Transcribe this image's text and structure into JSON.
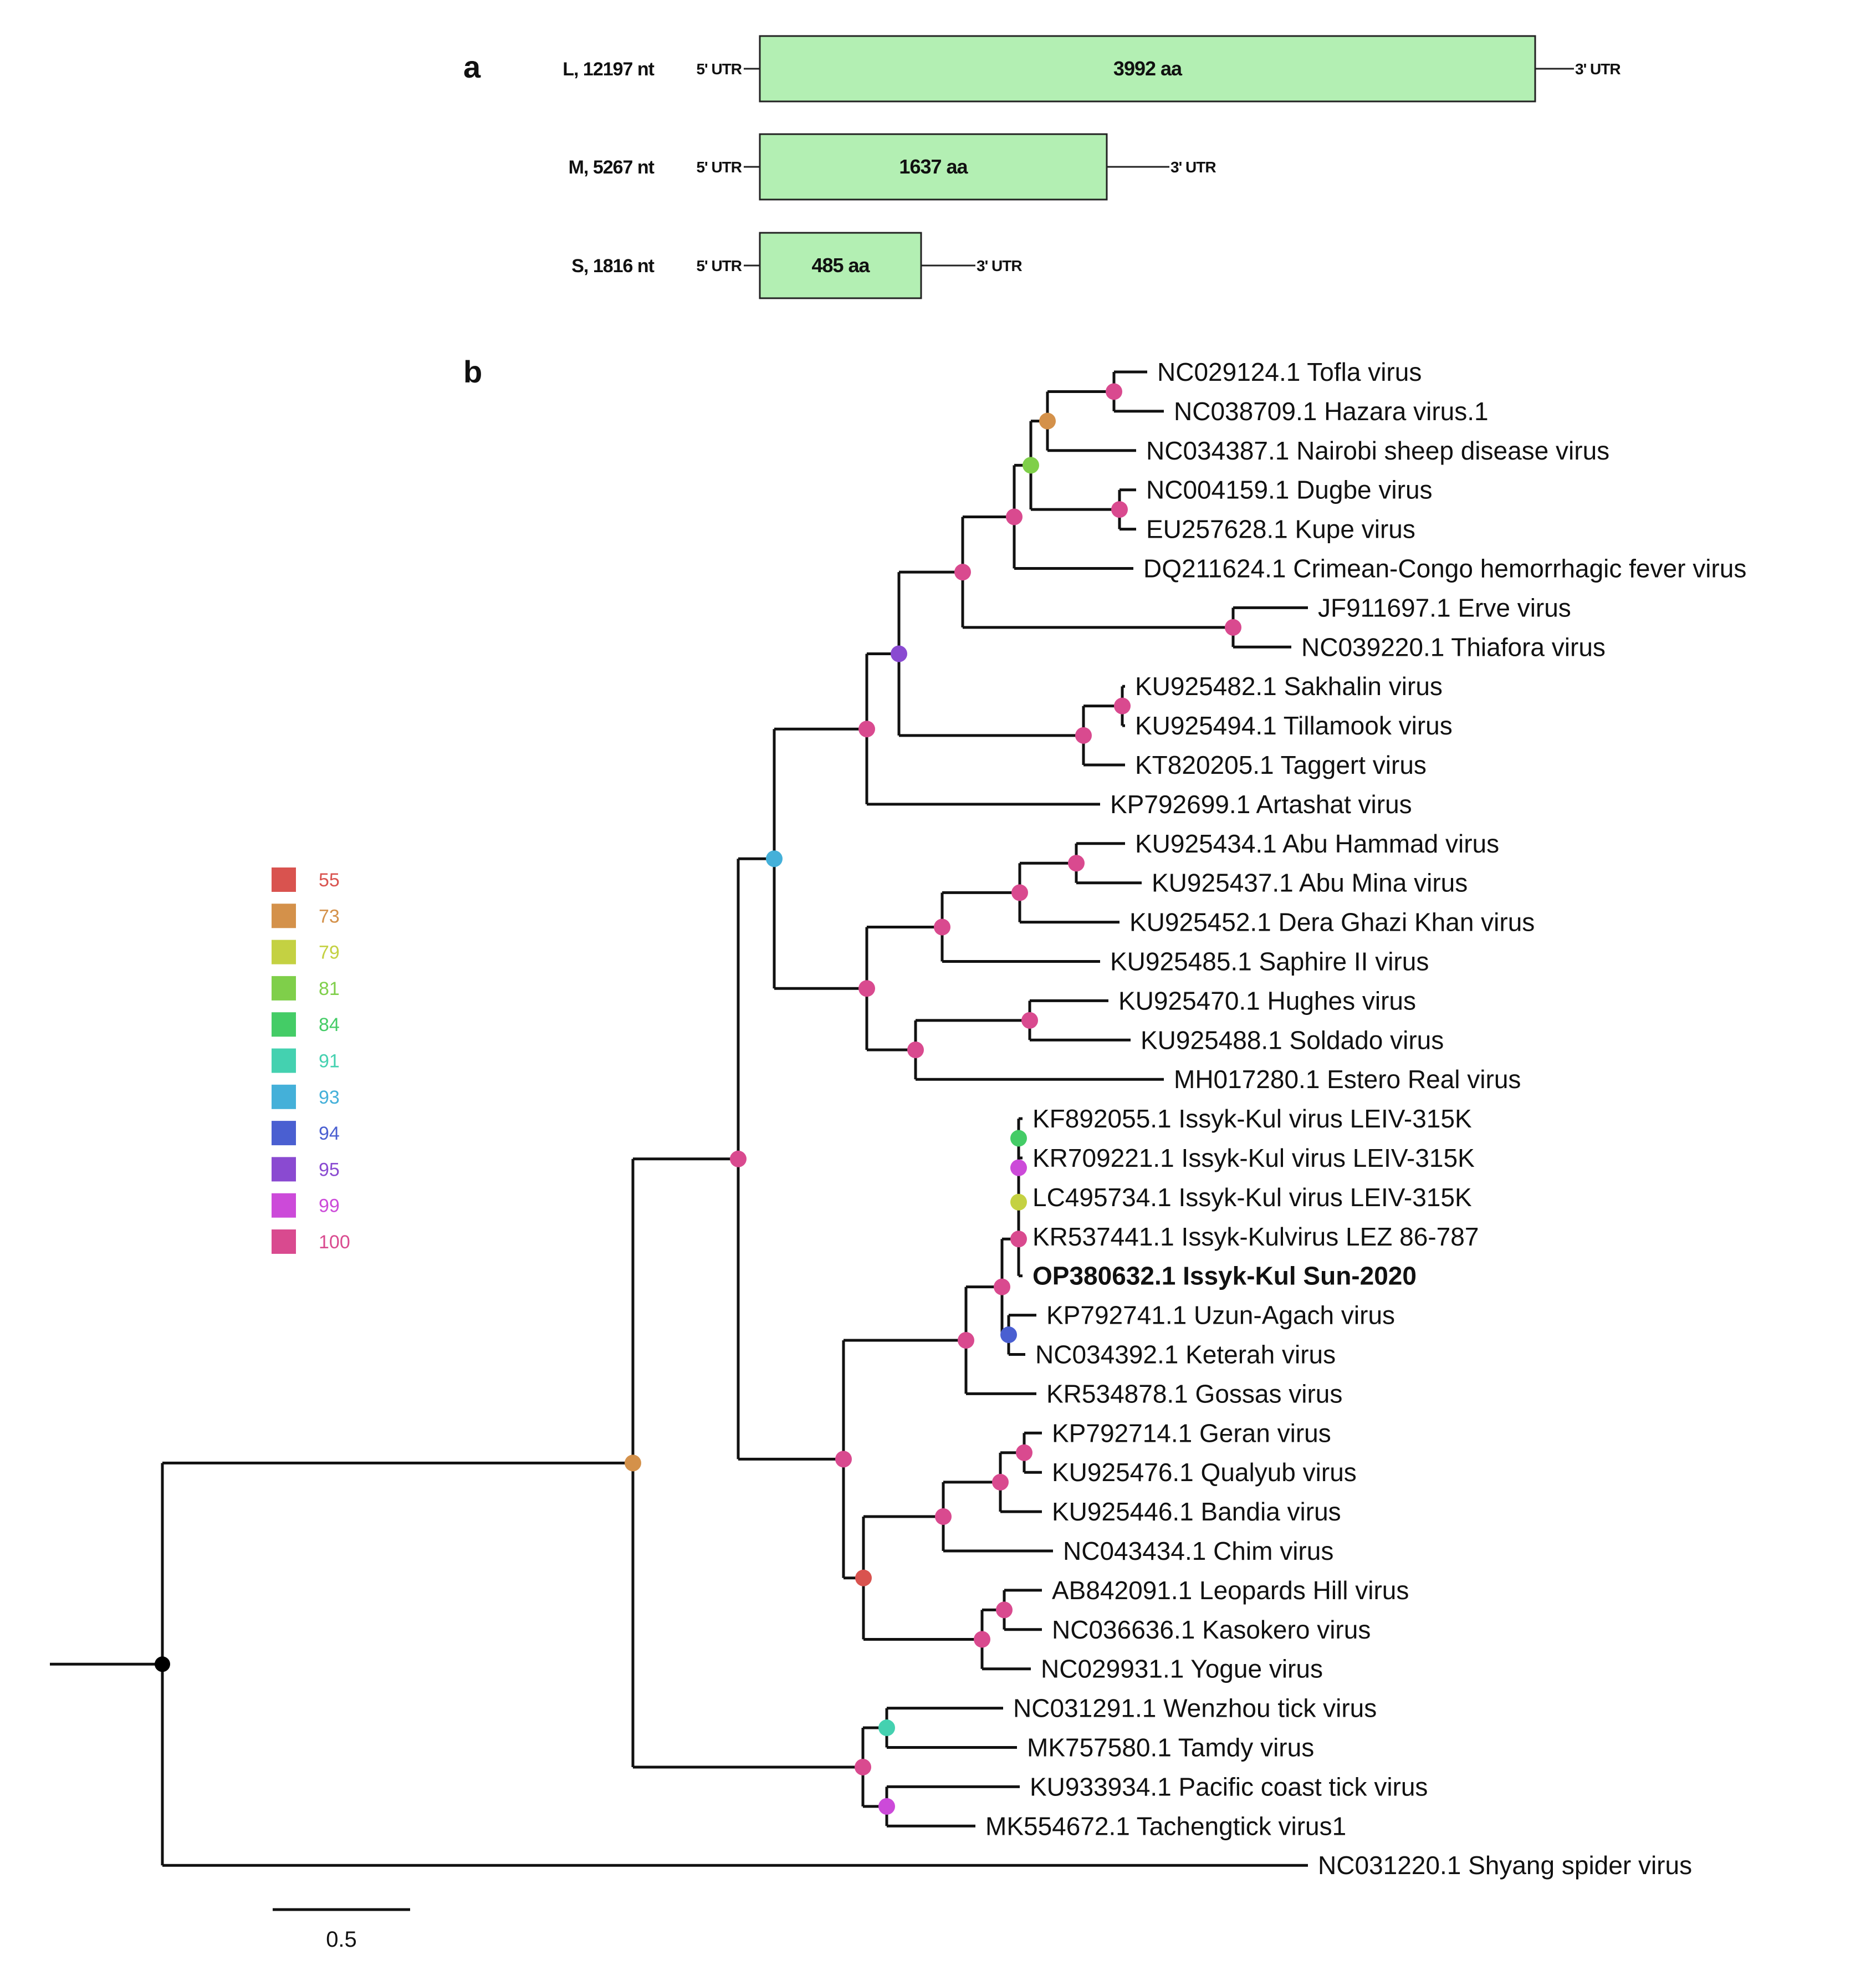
{
  "panel_a": {
    "letter": "a",
    "box_color": "#b3efb3",
    "segments": [
      {
        "name": "L, 12197 nt",
        "utr5": "5' UTR",
        "utr3": "3' UTR",
        "protein": "3992 aa"
      },
      {
        "name": "M, 5267 nt",
        "utr5": "5' UTR",
        "utr3": "3' UTR",
        "protein": "1637 aa"
      },
      {
        "name": "S, 1816 nt",
        "utr5": "5' UTR",
        "utr3": "3' UTR",
        "protein": "485 aa"
      }
    ]
  },
  "panel_b": {
    "letter": "b",
    "highlight_color": "#1a1aff",
    "highlight_taxon": "OP380632.1 Issyk-Kul Sun-2020",
    "taxa": [
      "NC029124.1 Tofla virus",
      "NC038709.1 Hazara virus.1",
      "NC034387.1 Nairobi sheep disease virus",
      "NC004159.1 Dugbe virus",
      "EU257628.1 Kupe virus",
      "DQ211624.1 Crimean-Congo hemorrhagic fever virus",
      "JF911697.1 Erve virus",
      "NC039220.1 Thiafora virus",
      "KU925482.1 Sakhalin virus",
      "KU925494.1 Tillamook virus",
      "KT820205.1 Taggert virus",
      "KP792699.1 Artashat virus",
      "KU925434.1 Abu Hammad virus",
      "KU925437.1 Abu Mina virus",
      "KU925452.1 Dera Ghazi Khan virus",
      "KU925485.1 Saphire II virus",
      "KU925470.1 Hughes virus",
      "KU925488.1 Soldado virus",
      "MH017280.1 Estero Real virus",
      "KF892055.1 Issyk-Kul virus LEIV-315K",
      "KR709221.1 Issyk-Kul virus LEIV-315K",
      "LC495734.1 Issyk-Kul virus LEIV-315K",
      "KR537441.1 Issyk-Kulvirus LEZ 86-787",
      "OP380632.1 Issyk-Kul Sun-2020",
      "KP792741.1 Uzun-Agach virus",
      "NC034392.1 Keterah virus",
      "KR534878.1 Gossas virus",
      "KP792714.1 Geran virus",
      "KU925476.1 Qualyub virus",
      "KU925446.1 Bandia virus",
      "NC043434.1 Chim virus",
      "AB842091.1 Leopards Hill virus",
      "NC036636.1 Kasokero virus",
      "NC029931.1 Yogue virus",
      "NC031291.1 Wenzhou tick virus",
      "MK757580.1 Tamdy virus",
      "KU933934.1 Pacific coast tick virus",
      "MK554672.1 Tachengtick virus1",
      "NC031220.1 Shyang spider virus"
    ],
    "legend": [
      {
        "value": "55",
        "color": "#d9534f"
      },
      {
        "value": "73",
        "color": "#d4914a"
      },
      {
        "value": "79",
        "color": "#c4d142"
      },
      {
        "value": "81",
        "color": "#7fcf4a"
      },
      {
        "value": "84",
        "color": "#44cc66"
      },
      {
        "value": "91",
        "color": "#44d1b0"
      },
      {
        "value": "93",
        "color": "#44b0d9"
      },
      {
        "value": "94",
        "color": "#4a5fd1"
      },
      {
        "value": "95",
        "color": "#8a4ad1"
      },
      {
        "value": "99",
        "color": "#cc4ad9"
      },
      {
        "value": "100",
        "color": "#d94a8f"
      }
    ],
    "scale_bar": "0.5"
  }
}
